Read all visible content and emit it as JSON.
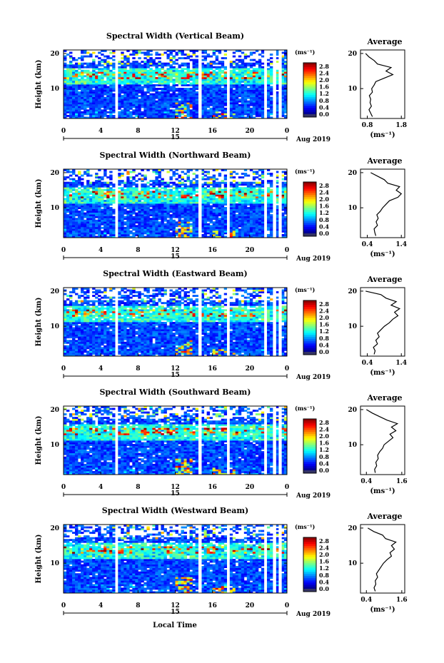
{
  "figure": {
    "xlabel": "Local Time",
    "date_label": "Aug 2019",
    "date_marker": "15",
    "unit_label": "(ms⁻¹)"
  },
  "chart_data": [
    {
      "type": "heatmap",
      "title": "Spectral Width (Vertical Beam)",
      "ylabel": "Height (km)",
      "xlabel": "Local Time",
      "x_ticks": [
        "0",
        "4",
        "8",
        "12",
        "16",
        "20",
        "0"
      ],
      "y_ticks": [
        "10",
        "20"
      ],
      "xlim": [
        0,
        24
      ],
      "ylim": [
        1.5,
        21
      ],
      "colorbar": {
        "unit": "(ms⁻¹)",
        "ticks": [
          "0.0",
          "0.4",
          "0.8",
          "1.2",
          "1.6",
          "2.0",
          "2.4",
          "2.8"
        ],
        "range": [
          0,
          3.0
        ]
      },
      "gaps": [
        5.7,
        14.7,
        17.7,
        21.7,
        22.7,
        23.3
      ],
      "profile": {
        "title": "Average",
        "xlabel": "(ms⁻¹)",
        "x_ticks": [
          "0.8",
          "1.8"
        ],
        "xlim": [
          0.6,
          1.9
        ],
        "heights": [
          2,
          3,
          4,
          5,
          6,
          7,
          8,
          9,
          10,
          11,
          12,
          13,
          14,
          15,
          16,
          17,
          18,
          19,
          20
        ],
        "values": [
          0.95,
          0.9,
          0.85,
          0.92,
          0.88,
          0.9,
          0.86,
          0.95,
          0.93,
          1.0,
          1.05,
          1.3,
          1.55,
          1.35,
          1.5,
          1.1,
          1.0,
          0.85,
          0.75
        ]
      }
    },
    {
      "type": "heatmap",
      "title": "Spectral Width (Northward Beam)",
      "ylabel": "Height (km)",
      "xlabel": "Local Time",
      "x_ticks": [
        "0",
        "4",
        "8",
        "12",
        "16",
        "20",
        "0"
      ],
      "y_ticks": [
        "10",
        "20"
      ],
      "xlim": [
        0,
        24
      ],
      "ylim": [
        1.5,
        21
      ],
      "colorbar": {
        "unit": "(ms⁻¹)",
        "ticks": [
          "0.0",
          "0.4",
          "0.8",
          "1.2",
          "1.6",
          "2.0",
          "2.4",
          "2.8"
        ],
        "range": [
          0,
          3.0
        ]
      },
      "gaps": [
        5.7,
        14.7,
        17.7,
        21.7,
        22.7,
        23.3
      ],
      "profile": {
        "title": "Average",
        "xlabel": "(ms⁻¹)",
        "x_ticks": [
          "0.4",
          "1.4"
        ],
        "xlim": [
          0.2,
          1.5
        ],
        "heights": [
          2,
          3,
          4,
          5,
          6,
          7,
          8,
          9,
          10,
          11,
          12,
          13,
          14,
          15,
          16,
          17,
          18,
          19,
          20
        ],
        "values": [
          0.65,
          0.62,
          0.6,
          0.7,
          0.66,
          0.72,
          0.68,
          0.78,
          0.85,
          0.95,
          1.05,
          1.3,
          1.4,
          1.25,
          1.35,
          1.0,
          0.9,
          0.7,
          0.5
        ]
      }
    },
    {
      "type": "heatmap",
      "title": "Spectral Width (Eastward Beam)",
      "ylabel": "Height (km)",
      "xlabel": "Local Time",
      "x_ticks": [
        "0",
        "4",
        "8",
        "12",
        "16",
        "20",
        "0"
      ],
      "y_ticks": [
        "10",
        "20"
      ],
      "xlim": [
        0,
        24
      ],
      "ylim": [
        1.5,
        21
      ],
      "colorbar": {
        "unit": "(ms⁻¹)",
        "ticks": [
          "0.0",
          "0.4",
          "0.8",
          "1.2",
          "1.6",
          "2.0",
          "2.4",
          "2.8"
        ],
        "range": [
          0,
          3.0
        ]
      },
      "gaps": [
        5.7,
        14.7,
        17.7,
        21.7,
        22.7,
        23.3
      ],
      "profile": {
        "title": "Average",
        "xlabel": "(ms⁻¹)",
        "x_ticks": [
          "0.4",
          "1.4"
        ],
        "xlim": [
          0.2,
          1.5
        ],
        "heights": [
          2,
          3,
          4,
          5,
          6,
          7,
          8,
          9,
          10,
          11,
          12,
          13,
          14,
          15,
          16,
          17,
          18,
          19,
          20
        ],
        "values": [
          0.6,
          0.63,
          0.58,
          0.7,
          0.65,
          0.75,
          0.7,
          0.8,
          0.9,
          1.05,
          1.15,
          1.3,
          1.2,
          1.35,
          1.1,
          1.25,
          0.95,
          0.8,
          0.35
        ]
      }
    },
    {
      "type": "heatmap",
      "title": "Spectral Width (Southward Beam)",
      "ylabel": "Height (km)",
      "xlabel": "Local Time",
      "x_ticks": [
        "0",
        "4",
        "8",
        "12",
        "16",
        "20",
        "0"
      ],
      "y_ticks": [
        "10",
        "20"
      ],
      "xlim": [
        0,
        24
      ],
      "ylim": [
        1.5,
        21
      ],
      "colorbar": {
        "unit": "(ms⁻¹)",
        "ticks": [
          "0.0",
          "0.4",
          "0.8",
          "1.2",
          "1.6",
          "2.0",
          "2.4",
          "2.8"
        ],
        "range": [
          0,
          3.0
        ]
      },
      "gaps": [
        5.7,
        14.7,
        17.7,
        21.7,
        22.7,
        23.3
      ],
      "profile": {
        "title": "Average",
        "xlabel": "(ms⁻¹)",
        "x_ticks": [
          "0.4",
          "1.6"
        ],
        "xlim": [
          0.2,
          1.7
        ],
        "heights": [
          2,
          3,
          4,
          5,
          6,
          7,
          8,
          9,
          10,
          11,
          12,
          13,
          14,
          15,
          16,
          17,
          18,
          19,
          20
        ],
        "values": [
          0.7,
          0.68,
          0.75,
          0.72,
          0.8,
          0.78,
          0.85,
          0.95,
          1.0,
          1.15,
          1.3,
          1.2,
          1.4,
          1.25,
          1.45,
          1.1,
          0.85,
          0.6,
          0.4
        ]
      }
    },
    {
      "type": "heatmap",
      "title": "Spectral Width (Westward Beam)",
      "ylabel": "Height (km)",
      "xlabel": "Local Time",
      "x_ticks": [
        "0",
        "4",
        "8",
        "12",
        "16",
        "20",
        "0"
      ],
      "y_ticks": [
        "10",
        "20"
      ],
      "xlim": [
        0,
        24
      ],
      "ylim": [
        1.5,
        21
      ],
      "colorbar": {
        "unit": "(ms⁻¹)",
        "ticks": [
          "0.0",
          "0.4",
          "0.8",
          "1.2",
          "1.6",
          "2.0",
          "2.4",
          "2.8"
        ],
        "range": [
          0,
          3.0
        ]
      },
      "gaps": [
        5.7,
        14.7,
        17.7,
        21.7,
        22.7,
        23.3
      ],
      "profile": {
        "title": "Average",
        "xlabel": "(ms⁻¹)",
        "x_ticks": [
          "0.4",
          "1.6"
        ],
        "xlim": [
          0.2,
          1.7
        ],
        "heights": [
          2,
          3,
          4,
          5,
          6,
          7,
          8,
          9,
          10,
          11,
          12,
          13,
          14,
          15,
          16,
          17,
          18,
          19,
          20
        ],
        "values": [
          0.7,
          0.66,
          0.72,
          0.7,
          0.78,
          0.74,
          0.82,
          0.9,
          0.98,
          1.1,
          1.25,
          1.2,
          1.35,
          1.25,
          1.4,
          1.05,
          0.95,
          0.65,
          0.45
        ]
      }
    }
  ]
}
